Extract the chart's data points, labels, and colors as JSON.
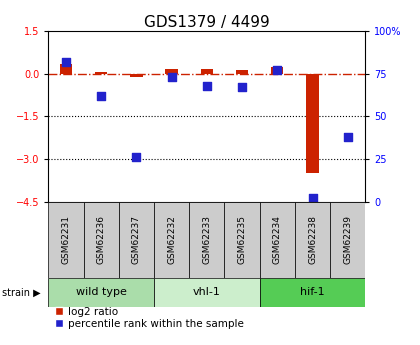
{
  "title": "GDS1379 / 4499",
  "samples": [
    "GSM62231",
    "GSM62236",
    "GSM62237",
    "GSM62232",
    "GSM62233",
    "GSM62235",
    "GSM62234",
    "GSM62238",
    "GSM62239"
  ],
  "log2_ratio": [
    0.35,
    0.07,
    -0.1,
    0.15,
    0.15,
    0.12,
    0.25,
    -3.5,
    -0.02
  ],
  "percentile_rank": [
    82,
    62,
    26,
    73,
    68,
    67,
    77,
    2,
    38
  ],
  "groups": [
    {
      "label": "wild type",
      "start": 0,
      "end": 3,
      "color": "#aaddaa"
    },
    {
      "label": "vhl-1",
      "start": 3,
      "end": 6,
      "color": "#cceecc"
    },
    {
      "label": "hif-1",
      "start": 6,
      "end": 9,
      "color": "#55cc55"
    }
  ],
  "ylim_left": [
    -4.5,
    1.5
  ],
  "ylim_right": [
    0,
    100
  ],
  "yticks_left": [
    -4.5,
    -3.0,
    -1.5,
    0.0,
    1.5
  ],
  "yticks_right": [
    0,
    25,
    50,
    75,
    100
  ],
  "bar_color": "#cc2200",
  "dot_color": "#2222cc",
  "hline_color": "#cc2200",
  "dotted_lines": [
    -1.5,
    -3.0
  ],
  "bar_width": 0.35,
  "dot_size": 28,
  "title_fontsize": 11,
  "tick_fontsize": 7,
  "legend_fontsize": 7.5,
  "sample_fontsize": 6.5,
  "group_fontsize": 8
}
